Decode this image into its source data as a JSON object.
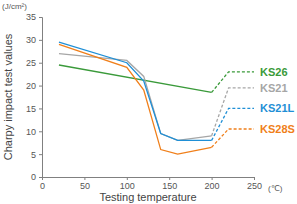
{
  "chart_data": {
    "type": "line",
    "y_label": "Charpy impact test values",
    "y_unit": "(J/cm²)",
    "x_label": "Testing temperature",
    "x_unit": "(℃)",
    "xlim": [
      0,
      250
    ],
    "xticks": [
      0,
      50,
      100,
      150,
      200,
      250
    ],
    "ylim": [
      0,
      35
    ],
    "yticks": [
      0,
      5,
      10,
      15,
      20,
      25,
      30,
      35
    ],
    "grid": false,
    "series": [
      {
        "color": "#3a9a3a",
        "line_style": "solid",
        "x": [
          20,
          200
        ],
        "values": [
          24.5,
          18.5
        ]
      },
      {
        "name": "KS26",
        "color": "#3a9a3a",
        "line_style": "dashed",
        "x": [
          200,
          220,
          250
        ],
        "values": [
          18.5,
          23,
          23
        ]
      },
      {
        "color": "#a6a6a6",
        "line_style": "solid",
        "x": [
          20,
          100,
          120,
          140,
          160,
          200
        ],
        "values": [
          27,
          25.5,
          22,
          9.5,
          8,
          9
        ]
      },
      {
        "name": "KS21",
        "color": "#a6a6a6",
        "line_style": "dashed",
        "x": [
          200,
          220,
          250
        ],
        "values": [
          9,
          19.5,
          19.5
        ]
      },
      {
        "color": "#1f8fd6",
        "line_style": "solid",
        "x": [
          20,
          100,
          120,
          140,
          160,
          200
        ],
        "values": [
          29.5,
          25,
          21,
          9.5,
          8,
          8
        ]
      },
      {
        "name": "KS21L",
        "color": "#1f8fd6",
        "line_style": "dashed",
        "x": [
          200,
          220,
          250
        ],
        "values": [
          8,
          15,
          15
        ]
      },
      {
        "color": "#f07f1a",
        "line_style": "solid",
        "x": [
          20,
          100,
          120,
          140,
          160,
          200
        ],
        "values": [
          29,
          24,
          19,
          6,
          5,
          6.5
        ]
      },
      {
        "name": "KS28S",
        "color": "#f07f1a",
        "line_style": "dashed",
        "x": [
          200,
          220,
          250
        ],
        "values": [
          6.5,
          10.5,
          10.5
        ]
      }
    ]
  }
}
